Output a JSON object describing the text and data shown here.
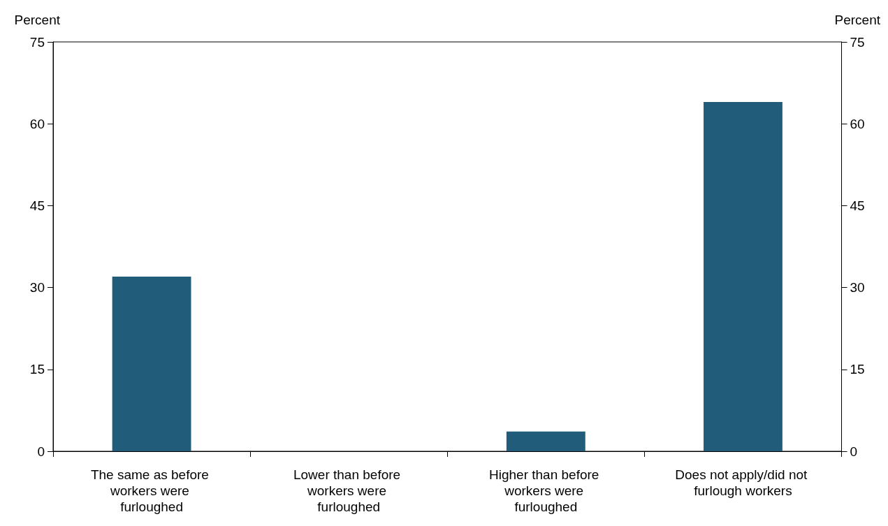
{
  "chart_data": {
    "type": "bar",
    "ylabel": "Percent",
    "y2label": "Percent",
    "categories": [
      "The same as before workers were furloughed",
      "Lower than before workers were furloughed",
      "Higher than before workers were furloughed",
      "Does not apply/did not furlough workers"
    ],
    "values": [
      32,
      0,
      3.6,
      64
    ],
    "color": "#215d7a",
    "ylim": [
      0,
      75
    ],
    "yticks": [
      0,
      15,
      30,
      45,
      60,
      75
    ],
    "y2lim": [
      0,
      75
    ],
    "y2ticks": [
      0,
      15,
      30,
      45,
      60,
      75
    ],
    "grid": false
  }
}
